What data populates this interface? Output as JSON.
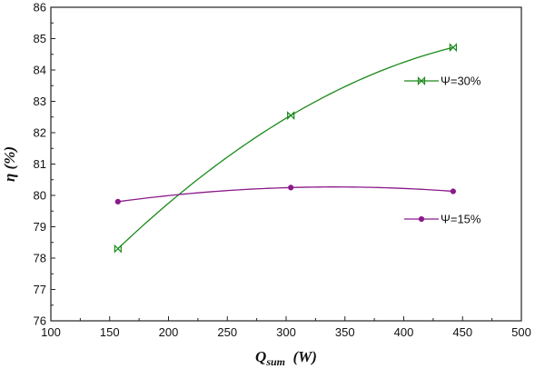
{
  "chart_data": {
    "type": "line",
    "title": "",
    "xlabel": {
      "main": "Q",
      "sub": "sum",
      "rest": "  (W)"
    },
    "ylabel": "η  (%)",
    "xlim": [
      100,
      500
    ],
    "ylim": [
      76,
      86
    ],
    "x_ticks": [
      "100",
      "150",
      "200",
      "250",
      "300",
      "350",
      "400",
      "450",
      "500"
    ],
    "y_ticks": [
      "76",
      "77",
      "78",
      "79",
      "80",
      "81",
      "82",
      "83",
      "84",
      "85",
      "86"
    ],
    "grid": false,
    "legend_placement": "right-inside",
    "series": [
      {
        "name": "Ψ=30%",
        "color": "#1a8a1a",
        "marker": "bowtie",
        "x": [
          157,
          304,
          442
        ],
        "y": [
          78.3,
          82.55,
          84.72
        ]
      },
      {
        "name": "Ψ=15%",
        "color": "#8b1a8b",
        "marker": "circle",
        "x": [
          157,
          304,
          442
        ],
        "y": [
          79.8,
          80.25,
          80.13
        ]
      }
    ]
  }
}
